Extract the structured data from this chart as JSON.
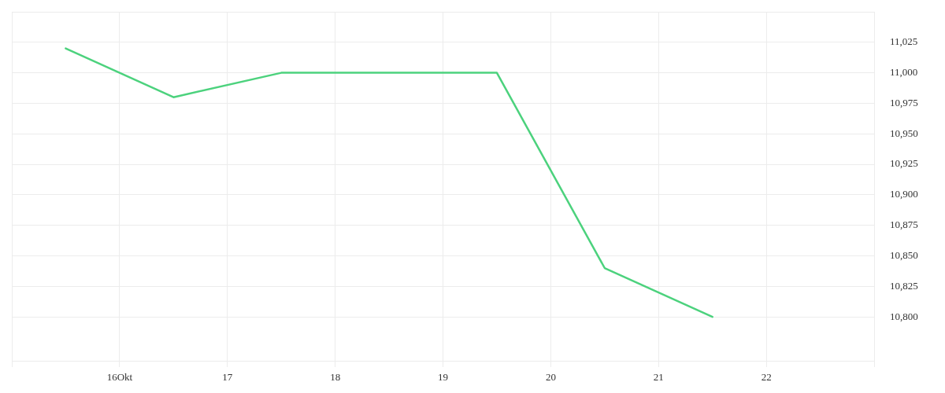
{
  "chart_data": {
    "type": "line",
    "x": [
      "--10-15T12:00",
      "--10-16T12:00",
      "--10-17T12:00",
      "--10-18T12:00",
      "--10-19T12:00",
      "--10-20T12:00",
      "--10-21T12:00"
    ],
    "series": [
      {
        "color": "#4cd27d",
        "values": [
          11020,
          10980,
          11000,
          11000,
          11000,
          10840,
          10800
        ]
      }
    ],
    "xlim": [
      "--10-15",
      "--10-23"
    ],
    "xticks": [
      {
        "value": "--10-15",
        "label": null
      },
      {
        "value": "--10-16",
        "label": "16Okt"
      },
      {
        "value": "--10-17",
        "label": "17"
      },
      {
        "value": "--10-18",
        "label": "18"
      },
      {
        "value": "--10-19",
        "label": "19"
      },
      {
        "value": "--10-20",
        "label": "20"
      },
      {
        "value": "--10-21",
        "label": "21"
      },
      {
        "value": "--10-22",
        "label": "22"
      },
      {
        "value": "--10-23",
        "label": null
      }
    ],
    "ylim": [
      10764,
      11050
    ],
    "yticks": [
      {
        "value": 10800,
        "label": "10,800"
      },
      {
        "value": 10825,
        "label": "10,825"
      },
      {
        "value": 10850,
        "label": "10,850"
      },
      {
        "value": 10875,
        "label": "10,875"
      },
      {
        "value": 10900,
        "label": "10,900"
      },
      {
        "value": 10925,
        "label": "10,925"
      },
      {
        "value": 10950,
        "label": "10,950"
      },
      {
        "value": 10975,
        "label": "10,975"
      },
      {
        "value": 11000,
        "label": "11,000"
      },
      {
        "value": 11025,
        "label": "11,025"
      },
      {
        "value": 11050,
        "label": null
      }
    ],
    "grid": true,
    "marker": "none",
    "line_style": "solid"
  }
}
